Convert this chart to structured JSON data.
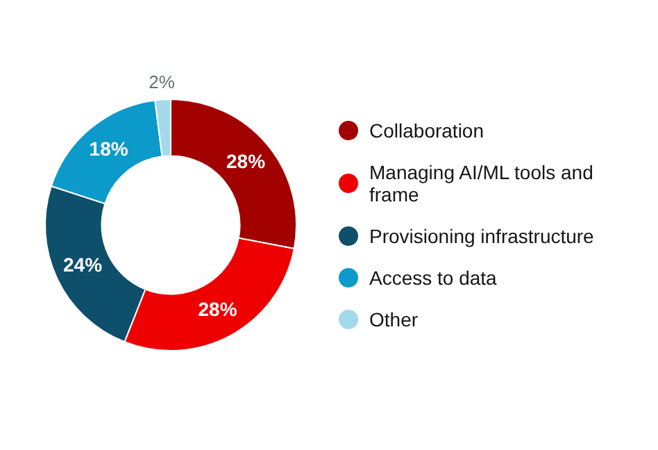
{
  "chart_data": {
    "type": "donut",
    "categories": [
      "Collaboration",
      "Managing AI/ML tools and frame",
      "Provisioning infrastructure",
      "Access to data",
      "Other"
    ],
    "values": [
      28,
      28,
      24,
      18,
      2
    ],
    "colors": [
      "#a30000",
      "#ee0000",
      "#0e4f6b",
      "#0b9ac9",
      "#a3d9ea"
    ],
    "value_labels": [
      "28%",
      "28%",
      "24%",
      "18%",
      "2%"
    ],
    "legend": "right"
  }
}
